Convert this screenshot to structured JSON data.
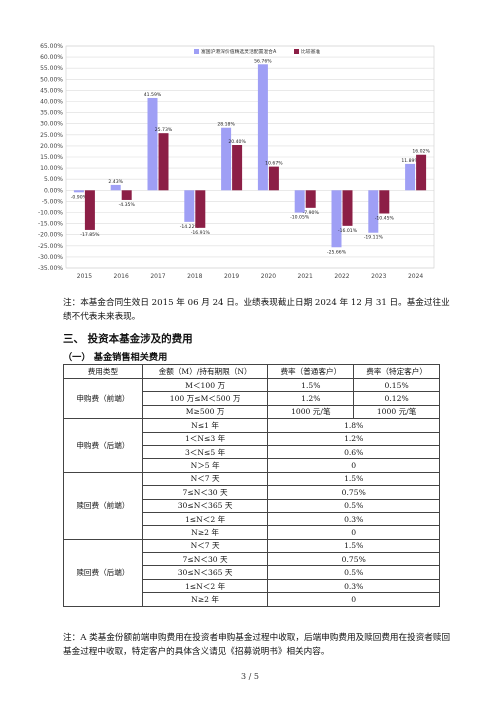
{
  "chart_data": {
    "type": "bar",
    "categories": [
      "2015",
      "2016",
      "2017",
      "2018",
      "2019",
      "2020",
      "2021",
      "2022",
      "2023",
      "2024"
    ],
    "series": [
      {
        "name": "富国沪港深价值精选灵活配置混合A",
        "color": "#9f9ff5",
        "values": [
          -0.9,
          2.43,
          41.59,
          -14.22,
          28.18,
          56.76,
          -10.05,
          -25.66,
          -19.11,
          11.89
        ],
        "labels": [
          "-0.90%",
          "2.43%",
          "41.59%",
          "-14.22%",
          "28.18%",
          "56.76%",
          "-10.05%",
          "-25.66%",
          "-19.11%",
          "11.89%"
        ]
      },
      {
        "name": "比较基准",
        "color": "#8c1f46",
        "values": [
          -17.85,
          -4.35,
          25.73,
          -16.91,
          20.4,
          10.67,
          -7.9,
          -16.01,
          -10.45,
          16.02
        ],
        "labels": [
          "-17.85%",
          "-4.35%",
          "25.73%",
          "-16.91%",
          "20.40%",
          "10.67%",
          "-7.90%",
          "-16.01%",
          "-10.45%",
          "16.02%"
        ]
      }
    ],
    "ylim": [
      -35,
      65
    ],
    "yticks": [
      "65.00%",
      "60.00%",
      "55.00%",
      "50.00%",
      "45.00%",
      "40.00%",
      "35.00%",
      "30.00%",
      "25.00%",
      "20.00%",
      "15.00%",
      "10.00%",
      "5.00%",
      "0.00%",
      "-5.00%",
      "-10.00%",
      "-15.00%",
      "-20.00%",
      "-25.00%",
      "-30.00%",
      "-35.00%"
    ],
    "legend_position": "top-right",
    "grid": true
  },
  "notes": {
    "performance": "注：本基金合同生效日 2015 年 06 月 24 日。业绩表现截止日期 2024 年 12 月 31 日。基金过往业绩不代表未来表现。",
    "fee_note": "注：A 类基金份额前端申购费用在投资者申购基金过程中收取，后端申购费用及赎回费用在投资者赎回基金过程中收取，特定客户的具体含义请见《招募说明书》相关内容。"
  },
  "section": {
    "title": "三、 投资本基金涉及的费用",
    "subtitle": "（一） 基金销售相关费用"
  },
  "fee_table": {
    "header": [
      "费用类型",
      "金额（M）/持有期限（N）",
      "费率（普通客户）",
      "费率（特定客户）"
    ],
    "groups": [
      {
        "type": "申购费（前端）",
        "rows": [
          [
            "M＜100 万",
            "1.5%",
            "0.15%"
          ],
          [
            "100 万≤M＜500 万",
            "1.2%",
            "0.12%"
          ],
          [
            "M≥500 万",
            "1000 元/笔",
            "1000 元/笔"
          ]
        ]
      },
      {
        "type": "申购费（后端）",
        "rows": [
          [
            "N≤1 年",
            "1.8%"
          ],
          [
            "1＜N≤3 年",
            "1.2%"
          ],
          [
            "3＜N≤5 年",
            "0.6%"
          ],
          [
            "N＞5 年",
            "0"
          ]
        ]
      },
      {
        "type": "赎回费（前端）",
        "rows": [
          [
            "N＜7 天",
            "1.5%"
          ],
          [
            "7≤N＜30 天",
            "0.75%"
          ],
          [
            "30≤N＜365 天",
            "0.5%"
          ],
          [
            "1≤N＜2 年",
            "0.3%"
          ],
          [
            "N≥2 年",
            "0"
          ]
        ]
      },
      {
        "type": "赎回费（后端）",
        "rows": [
          [
            "N＜7 天",
            "1.5%"
          ],
          [
            "7≤N＜30 天",
            "0.75%"
          ],
          [
            "30≤N＜365 天",
            "0.5%"
          ],
          [
            "1≤N＜2 年",
            "0.3%"
          ],
          [
            "N≥2 年",
            "0"
          ]
        ]
      }
    ]
  },
  "page_number": "3 / 5"
}
